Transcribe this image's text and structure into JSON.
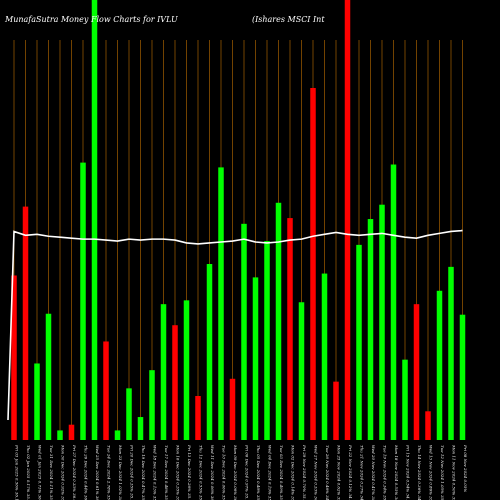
{
  "chart_data": {
    "type": "bar",
    "title": "MunafaSutra  Money Flow  Charts for IVLU",
    "subtitle": "(Ishares MSCI Int",
    "colors": {
      "up": "#00ff00",
      "down": "#ff0000",
      "line": "#ffffff",
      "grid": "#c07000",
      "background": "#000000"
    },
    "grid": true,
    "x_tick_labels": [
      "Fri 03 Jan 2025 0.56% 36.13 (Mbs)",
      "Thu 02 Jan 2025 0.17% 35.92",
      "Wed 01 Jan 2025 0.73% 36.03",
      "Tue 31 Dec 2024 0.11% 35.77",
      "Mon 30 Dec 2024 0.92% 35.73",
      "Fri 27 Dec 2024 0.33% 36.06",
      "Thu 26 Dec 2024 0.44% 36.18",
      "Wed 25 Dec 2024 0.61% 36.02",
      "Tue 24 Dec 2024 2.78% 35.80",
      "Mon 23 Dec 2024 1.02% 34.83",
      "Fri 20 Dec 2024 0.35% 35.18",
      "Thu 19 Dec 2024 0.47% 35.30",
      "Wed 18 Dec 2024 0.13% 35.47",
      "Tue 17 Dec 2024 0.48% 35.42",
      "Mon 16 Dec 2024 0.35% 35.59",
      "Fri 13 Dec 2024 0.26% 35.72",
      "Thu 12 Dec 2024 0.55% 35.81",
      "Wed 11 Dec 2024 0.06% 36.01",
      "Tue 10 Dec 2024 0.06% 35.99",
      "Mon 09 Dec 2024 0.06% 36.03",
      "Fri 06 Dec 2024 0.97% 35.74",
      "Thu 05 Dec 2024 0.48% 35.40",
      "Wed 04 Dec 2024 0.19% 35.23",
      "Tue 03 Dec 2024 0.49% 35.30",
      "Mon 02 Dec 2024 0.14% 35.13",
      "Fri 29 Nov 2024 0.70% 35.08",
      "Wed 27 Nov 2024 0.33% 34.84",
      "Tue 26 Nov 2024 0.46% 34.95",
      "Mon 25 Nov 2024 0.62% 35.11",
      "Fri 22 Nov 2024 0.12% 34.89",
      "Thu 21 Nov 2024 0.27% 34.85",
      "Wed 20 Nov 2024 0.41% 34.95",
      "Tue 19 Nov 2024 0.34% 35.09",
      "Mon 18 Nov 2024 0.55% 34.97",
      "Fri 15 Nov 2024 0.54% 34.78",
      "Thu 14 Nov 2024 0.36% 34.97",
      "Wed 13 Nov 2024 0.86% 35.09",
      "Tue 12 Nov 2024 1.05% 35.39",
      "Mon 11 Nov 2024 0.50% 35.76",
      "Fri 08 Nov 2024 0.05%"
    ],
    "bars": [
      {
        "value": 172,
        "direction": "down"
      },
      {
        "value": 244,
        "direction": "down"
      },
      {
        "value": 80,
        "direction": "up"
      },
      {
        "value": 132,
        "direction": "up"
      },
      {
        "value": 10,
        "direction": "up"
      },
      {
        "value": 16,
        "direction": "down"
      },
      {
        "value": 290,
        "direction": "up"
      },
      {
        "value": 460,
        "direction": "up"
      },
      {
        "value": 103,
        "direction": "down"
      },
      {
        "value": 10,
        "direction": "up"
      },
      {
        "value": 54,
        "direction": "up"
      },
      {
        "value": 24,
        "direction": "up"
      },
      {
        "value": 73,
        "direction": "up"
      },
      {
        "value": 142,
        "direction": "up"
      },
      {
        "value": 120,
        "direction": "down"
      },
      {
        "value": 146,
        "direction": "up"
      },
      {
        "value": 46,
        "direction": "down"
      },
      {
        "value": 184,
        "direction": "up"
      },
      {
        "value": 285,
        "direction": "up"
      },
      {
        "value": 64,
        "direction": "down"
      },
      {
        "value": 226,
        "direction": "up"
      },
      {
        "value": 170,
        "direction": "up"
      },
      {
        "value": 208,
        "direction": "up"
      },
      {
        "value": 248,
        "direction": "up"
      },
      {
        "value": 232,
        "direction": "down"
      },
      {
        "value": 144,
        "direction": "up"
      },
      {
        "value": 368,
        "direction": "down"
      },
      {
        "value": 174,
        "direction": "up"
      },
      {
        "value": 61,
        "direction": "down"
      },
      {
        "value": 460,
        "direction": "down"
      },
      {
        "value": 204,
        "direction": "up"
      },
      {
        "value": 231,
        "direction": "up"
      },
      {
        "value": 246,
        "direction": "up"
      },
      {
        "value": 288,
        "direction": "up"
      },
      {
        "value": 84,
        "direction": "up"
      },
      {
        "value": 142,
        "direction": "down"
      },
      {
        "value": 30,
        "direction": "down"
      },
      {
        "value": 156,
        "direction": "up"
      },
      {
        "value": 181,
        "direction": "up"
      },
      {
        "value": 131,
        "direction": "up"
      }
    ],
    "line": [
      218,
      214,
      215,
      213,
      212,
      211,
      210,
      210,
      209,
      208,
      210,
      209,
      210,
      210,
      209,
      206,
      205,
      206,
      207,
      208,
      210,
      207,
      206,
      207,
      209,
      210,
      213,
      215,
      217,
      215,
      214,
      215,
      216,
      214,
      212,
      211,
      214,
      216,
      218,
      219
    ],
    "ylim": [
      0,
      460
    ]
  }
}
